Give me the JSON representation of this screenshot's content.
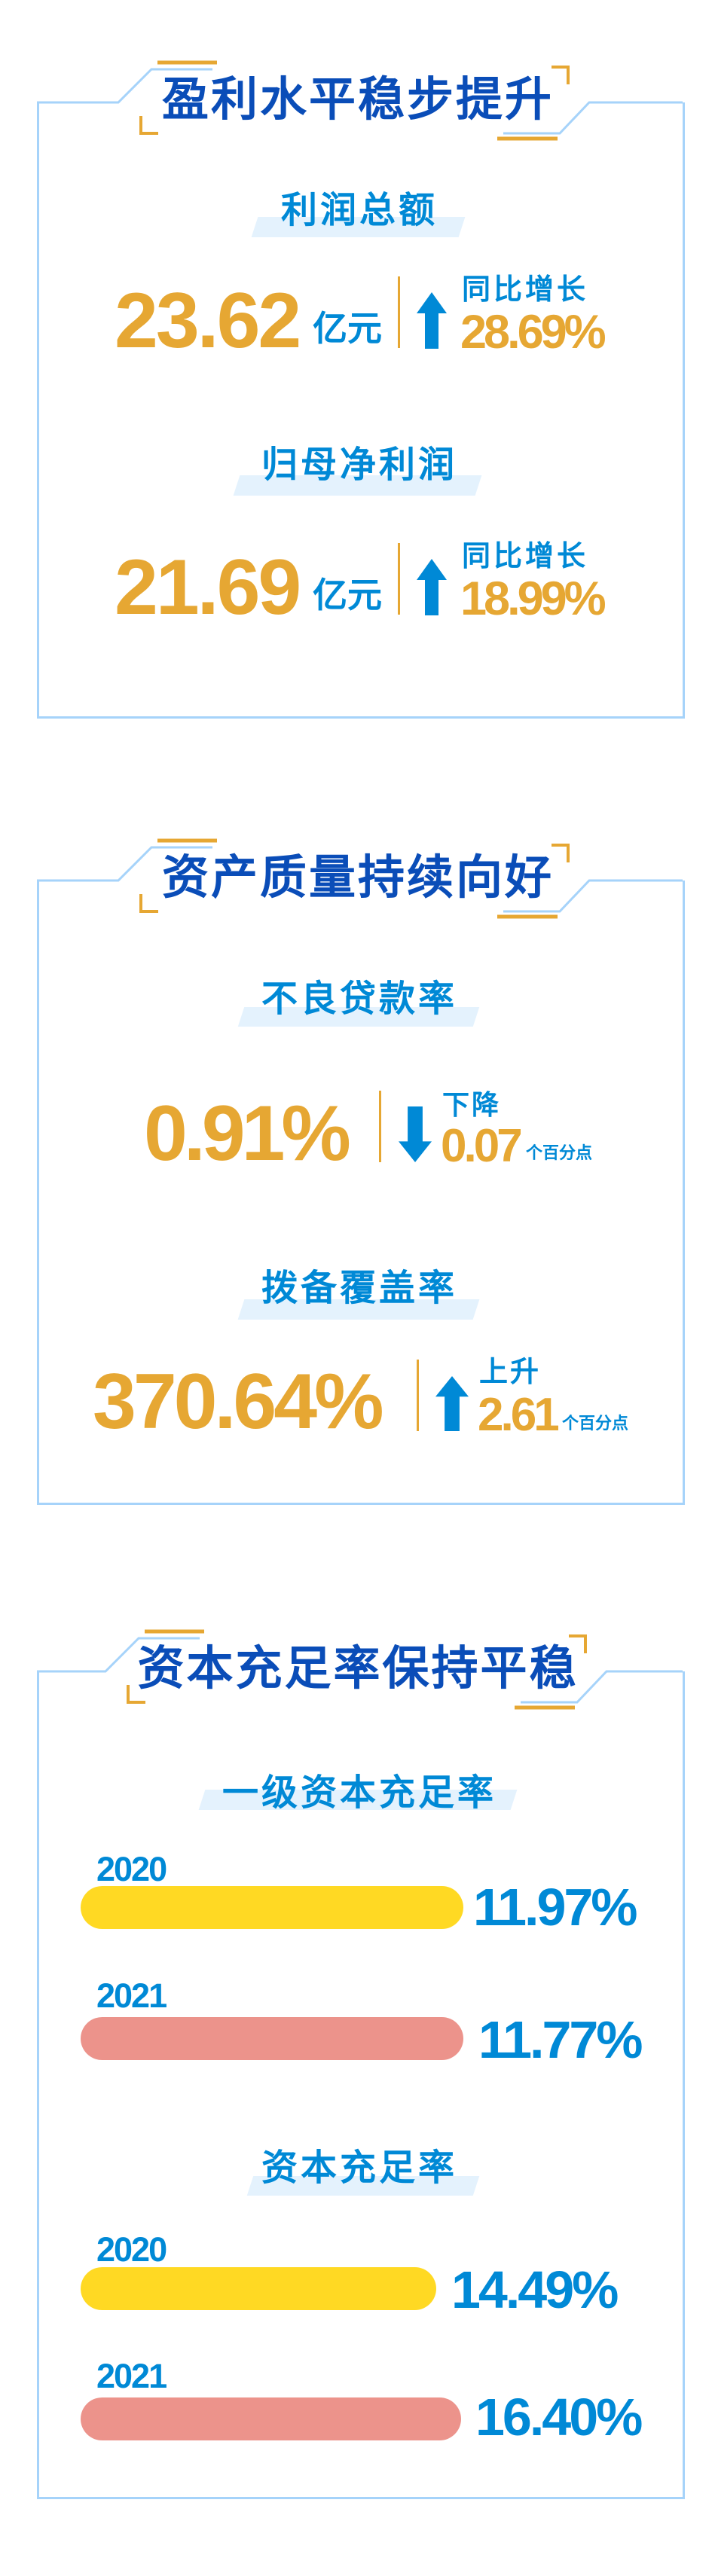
{
  "colors": {
    "title_blue": "#0A4DB8",
    "label_blue": "#0089D6",
    "gold": "#E6A733",
    "frame": "#A6D3FA",
    "highlight": "#E4F2FD",
    "bar_2020": "#FFD923",
    "bar_2021": "#EC938B"
  },
  "sections": [
    {
      "title": "盈利水平稳步提升",
      "metrics": [
        {
          "label": "利润总额",
          "value": "23.62",
          "unit": "亿元",
          "change_label": "同比增长",
          "change_value": "28.69%",
          "direction": "up",
          "icon": "arrow-up-icon"
        },
        {
          "label": "归母净利润",
          "value": "21.69",
          "unit": "亿元",
          "change_label": "同比增长",
          "change_value": "18.99%",
          "direction": "up",
          "icon": "arrow-up-icon"
        }
      ]
    },
    {
      "title": "资产质量持续向好",
      "metrics": [
        {
          "label": "不良贷款率",
          "value": "0.91%",
          "change_label": "下降",
          "change_value": "0.07",
          "change_unit": "个百分点",
          "direction": "down",
          "icon": "arrow-down-icon"
        },
        {
          "label": "拨备覆盖率",
          "value": "370.64%",
          "change_label": "上升",
          "change_value": "2.61",
          "change_unit": "个百分点",
          "direction": "up",
          "icon": "arrow-up-icon"
        }
      ]
    },
    {
      "title": "资本充足率保持平稳",
      "groups": [
        {
          "label": "一级资本充足率",
          "bars": [
            {
              "year": "2020",
              "value": "11.97%"
            },
            {
              "year": "2021",
              "value": "11.77%"
            }
          ]
        },
        {
          "label": "资本充足率",
          "bars": [
            {
              "year": "2020",
              "value": "14.49%"
            },
            {
              "year": "2021",
              "value": "16.40%"
            }
          ]
        }
      ]
    }
  ]
}
